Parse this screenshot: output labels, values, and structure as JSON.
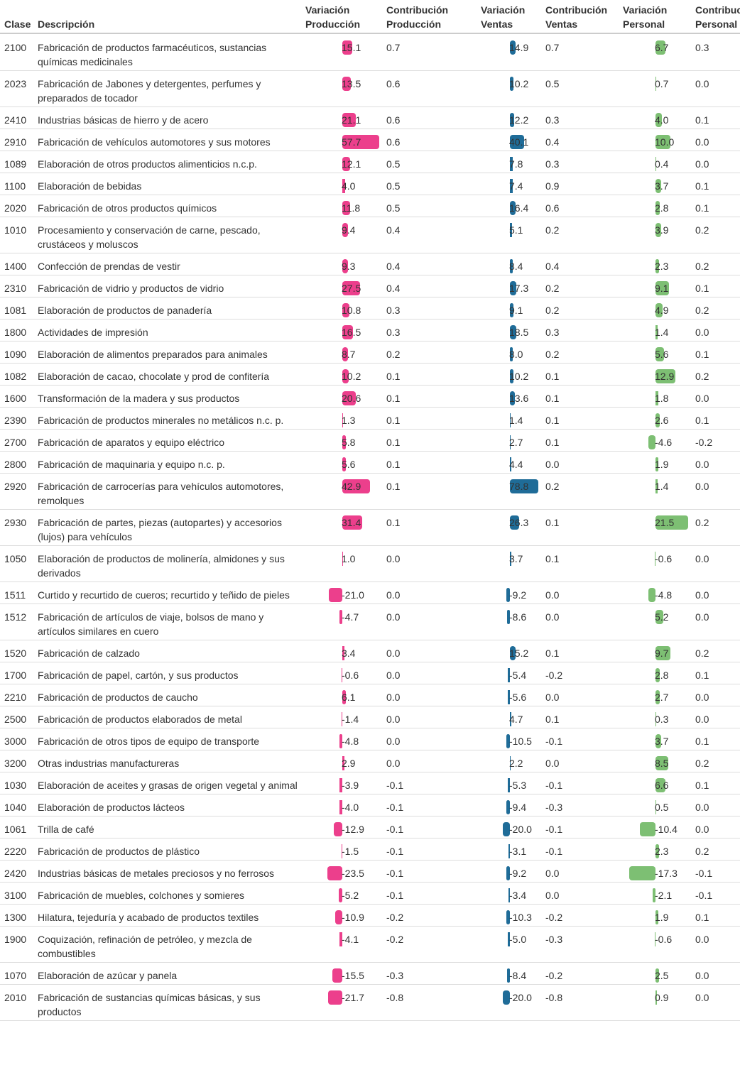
{
  "chart_data": {
    "type": "table",
    "colors": {
      "produccion": "#ec3f8c",
      "ventas": "#1f6c98",
      "personal": "#7dbf73"
    },
    "headers": {
      "clase": "Clase",
      "descripcion": "Descripción",
      "var_prod": [
        "Variación",
        "Producción"
      ],
      "contrib_prod": [
        "Contribución",
        "Producción"
      ],
      "var_ventas": [
        "Variación",
        "Ventas"
      ],
      "contrib_ventas": [
        "Contribución",
        "Ventas"
      ],
      "var_personal": [
        "Variación",
        "Personal"
      ],
      "contrib_personal": [
        "Contribución",
        "Personal"
      ]
    },
    "rows": [
      {
        "clase": "2100",
        "descripcion": "Fabricación de productos farmacéuticos, sustancias químicas medicinales",
        "var_prod": 15.1,
        "contrib_prod": "0.7",
        "var_ventas": 14.9,
        "contrib_ventas": "0.7",
        "var_personal": 6.7,
        "contrib_personal": "0.3"
      },
      {
        "clase": "2023",
        "descripcion": "Fabricación de Jabones y detergentes, perfumes y preparados de tocador",
        "var_prod": 13.5,
        "contrib_prod": "0.6",
        "var_ventas": 10.2,
        "contrib_ventas": "0.5",
        "var_personal": 0.7,
        "contrib_personal": "0.0"
      },
      {
        "clase": "2410",
        "descripcion": "Industrias básicas de hierro y de acero",
        "var_prod": 21.1,
        "contrib_prod": "0.6",
        "var_ventas": 12.2,
        "contrib_ventas": "0.3",
        "var_personal": 4.0,
        "contrib_personal": "0.1"
      },
      {
        "clase": "2910",
        "descripcion": "Fabricación de vehículos automotores y sus motores",
        "var_prod": 57.7,
        "contrib_prod": "0.6",
        "var_ventas": 40.1,
        "contrib_ventas": "0.4",
        "var_personal": 10.0,
        "contrib_personal": "0.0"
      },
      {
        "clase": "1089",
        "descripcion": "Elaboración de otros productos alimenticios n.c.p.",
        "var_prod": 12.1,
        "contrib_prod": "0.5",
        "var_ventas": 7.8,
        "contrib_ventas": "0.3",
        "var_personal": 0.4,
        "contrib_personal": "0.0"
      },
      {
        "clase": "1100",
        "descripcion": "Elaboración de bebidas",
        "var_prod": 4.0,
        "contrib_prod": "0.5",
        "var_ventas": 7.4,
        "contrib_ventas": "0.9",
        "var_personal": 3.7,
        "contrib_personal": "0.1"
      },
      {
        "clase": "2020",
        "descripcion": "Fabricación de otros productos químicos",
        "var_prod": 11.8,
        "contrib_prod": "0.5",
        "var_ventas": 16.4,
        "contrib_ventas": "0.6",
        "var_personal": 2.8,
        "contrib_personal": "0.1"
      },
      {
        "clase": "1010",
        "descripcion": "Procesamiento y conservación de carne, pescado, crustáceos y moluscos",
        "var_prod": 9.4,
        "contrib_prod": "0.4",
        "var_ventas": 5.1,
        "contrib_ventas": "0.2",
        "var_personal": 3.9,
        "contrib_personal": "0.2"
      },
      {
        "clase": "1400",
        "descripcion": "Confección de prendas de vestir",
        "var_prod": 9.3,
        "contrib_prod": "0.4",
        "var_ventas": 8.4,
        "contrib_ventas": "0.4",
        "var_personal": 2.3,
        "contrib_personal": "0.2"
      },
      {
        "clase": "2310",
        "descripcion": "Fabricación de vidrio y productos de vidrio",
        "var_prod": 27.5,
        "contrib_prod": "0.4",
        "var_ventas": 17.3,
        "contrib_ventas": "0.2",
        "var_personal": 9.1,
        "contrib_personal": "0.1"
      },
      {
        "clase": "1081",
        "descripcion": "Elaboración de productos de panadería",
        "var_prod": 10.8,
        "contrib_prod": "0.3",
        "var_ventas": 9.1,
        "contrib_ventas": "0.2",
        "var_personal": 4.9,
        "contrib_personal": "0.2"
      },
      {
        "clase": "1800",
        "descripcion": "Actividades de impresión",
        "var_prod": 16.5,
        "contrib_prod": "0.3",
        "var_ventas": 18.5,
        "contrib_ventas": "0.3",
        "var_personal": 1.4,
        "contrib_personal": "0.0"
      },
      {
        "clase": "1090",
        "descripcion": "Elaboración de alimentos preparados para animales",
        "var_prod": 8.7,
        "contrib_prod": "0.2",
        "var_ventas": 8.0,
        "contrib_ventas": "0.2",
        "var_personal": 5.6,
        "contrib_personal": "0.1"
      },
      {
        "clase": "1082",
        "descripcion": "Elaboración de cacao, chocolate y prod de confitería",
        "var_prod": 10.2,
        "contrib_prod": "0.1",
        "var_ventas": 10.2,
        "contrib_ventas": "0.1",
        "var_personal": 12.9,
        "contrib_personal": "0.2"
      },
      {
        "clase": "1600",
        "descripcion": "Transformación de la madera y sus productos",
        "var_prod": 20.6,
        "contrib_prod": "0.1",
        "var_ventas": 13.6,
        "contrib_ventas": "0.1",
        "var_personal": 1.8,
        "contrib_personal": "0.0"
      },
      {
        "clase": "2390",
        "descripcion": "Fabricación de productos minerales no metálicos n.c. p.",
        "var_prod": 1.3,
        "contrib_prod": "0.1",
        "var_ventas": 1.4,
        "contrib_ventas": "0.1",
        "var_personal": 2.6,
        "contrib_personal": "0.1"
      },
      {
        "clase": "2700",
        "descripcion": "Fabricación de aparatos y equipo eléctrico",
        "var_prod": 5.8,
        "contrib_prod": "0.1",
        "var_ventas": 2.7,
        "contrib_ventas": "0.1",
        "var_personal": -4.6,
        "contrib_personal": "-0.2"
      },
      {
        "clase": "2800",
        "descripcion": "Fabricación de maquinaria y equipo n.c. p.",
        "var_prod": 5.6,
        "contrib_prod": "0.1",
        "var_ventas": 4.4,
        "contrib_ventas": "0.0",
        "var_personal": 1.9,
        "contrib_personal": "0.0"
      },
      {
        "clase": "2920",
        "descripcion": "Fabricación de carrocerías para vehículos automotores, remolques",
        "var_prod": 42.9,
        "contrib_prod": "0.1",
        "var_ventas": 78.8,
        "contrib_ventas": "0.2",
        "var_personal": 1.4,
        "contrib_personal": "0.0"
      },
      {
        "clase": "2930",
        "descripcion": "Fabricación de partes, piezas (autopartes) y accesorios (lujos) para vehículos",
        "var_prod": 31.4,
        "contrib_prod": "0.1",
        "var_ventas": 26.3,
        "contrib_ventas": "0.1",
        "var_personal": 21.5,
        "contrib_personal": "0.2"
      },
      {
        "clase": "1050",
        "descripcion": "Elaboración de productos de molinería, almidones y sus derivados",
        "var_prod": 1.0,
        "contrib_prod": "0.0",
        "var_ventas": 3.7,
        "contrib_ventas": "0.1",
        "var_personal": -0.6,
        "contrib_personal": "0.0"
      },
      {
        "clase": "1511",
        "descripcion": "Curtido y recurtido de cueros; recurtido y teñido de pieles",
        "var_prod": -21.0,
        "contrib_prod": "0.0",
        "var_ventas": -9.2,
        "contrib_ventas": "0.0",
        "var_personal": -4.8,
        "contrib_personal": "0.0"
      },
      {
        "clase": "1512",
        "descripcion": "Fabricación de artículos de viaje, bolsos de mano y artículos similares en cuero",
        "var_prod": -4.7,
        "contrib_prod": "0.0",
        "var_ventas": -8.6,
        "contrib_ventas": "0.0",
        "var_personal": 5.2,
        "contrib_personal": "0.0"
      },
      {
        "clase": "1520",
        "descripcion": "Fabricación de calzado",
        "var_prod": 3.4,
        "contrib_prod": "0.0",
        "var_ventas": 15.2,
        "contrib_ventas": "0.1",
        "var_personal": 9.7,
        "contrib_personal": "0.2"
      },
      {
        "clase": "1700",
        "descripcion": "Fabricación de papel, cartón, y sus productos",
        "var_prod": -0.6,
        "contrib_prod": "0.0",
        "var_ventas": -5.4,
        "contrib_ventas": "-0.2",
        "var_personal": 2.8,
        "contrib_personal": "0.1"
      },
      {
        "clase": "2210",
        "descripcion": "Fabricación de productos de caucho",
        "var_prod": 6.1,
        "contrib_prod": "0.0",
        "var_ventas": -5.6,
        "contrib_ventas": "0.0",
        "var_personal": 2.7,
        "contrib_personal": "0.0"
      },
      {
        "clase": "2500",
        "descripcion": "Fabricación de productos elaborados de metal",
        "var_prod": -1.4,
        "contrib_prod": "0.0",
        "var_ventas": 4.7,
        "contrib_ventas": "0.1",
        "var_personal": 0.3,
        "contrib_personal": "0.0"
      },
      {
        "clase": "3000",
        "descripcion": "Fabricación de otros tipos de equipo de transporte",
        "var_prod": -4.8,
        "contrib_prod": "0.0",
        "var_ventas": -10.5,
        "contrib_ventas": "-0.1",
        "var_personal": 3.7,
        "contrib_personal": "0.1"
      },
      {
        "clase": "3200",
        "descripcion": "Otras industrias manufactureras",
        "var_prod": 2.9,
        "contrib_prod": "0.0",
        "var_ventas": 2.2,
        "contrib_ventas": "0.0",
        "var_personal": 8.5,
        "contrib_personal": "0.2"
      },
      {
        "clase": "1030",
        "descripcion": "Elaboración de aceites y grasas de origen vegetal y animal",
        "var_prod": -3.9,
        "contrib_prod": "-0.1",
        "var_ventas": -5.3,
        "contrib_ventas": "-0.1",
        "var_personal": 6.6,
        "contrib_personal": "0.1"
      },
      {
        "clase": "1040",
        "descripcion": "Elaboración de productos lácteos",
        "var_prod": -4.0,
        "contrib_prod": "-0.1",
        "var_ventas": -9.4,
        "contrib_ventas": "-0.3",
        "var_personal": 0.5,
        "contrib_personal": "0.0"
      },
      {
        "clase": "1061",
        "descripcion": "Trilla de café",
        "var_prod": -12.9,
        "contrib_prod": "-0.1",
        "var_ventas": -20.0,
        "contrib_ventas": "-0.1",
        "var_personal": -10.4,
        "contrib_personal": "0.0"
      },
      {
        "clase": "2220",
        "descripcion": "Fabricación de productos de plástico",
        "var_prod": -1.5,
        "contrib_prod": "-0.1",
        "var_ventas": -3.1,
        "contrib_ventas": "-0.1",
        "var_personal": 2.3,
        "contrib_personal": "0.2"
      },
      {
        "clase": "2420",
        "descripcion": "Industrias básicas de metales preciosos y no ferrosos",
        "var_prod": -23.5,
        "contrib_prod": "-0.1",
        "var_ventas": -9.2,
        "contrib_ventas": "0.0",
        "var_personal": -17.3,
        "contrib_personal": "-0.1"
      },
      {
        "clase": "3100",
        "descripcion": "Fabricación de muebles, colchones y somieres",
        "var_prod": -5.2,
        "contrib_prod": "-0.1",
        "var_ventas": -3.4,
        "contrib_ventas": "0.0",
        "var_personal": -2.1,
        "contrib_personal": "-0.1"
      },
      {
        "clase": "1300",
        "descripcion": "Hilatura, tejeduría y acabado de productos textiles",
        "var_prod": -10.9,
        "contrib_prod": "-0.2",
        "var_ventas": -10.3,
        "contrib_ventas": "-0.2",
        "var_personal": 1.9,
        "contrib_personal": "0.1"
      },
      {
        "clase": "1900",
        "descripcion": "Coquización, refinación de petróleo, y mezcla de combustibles",
        "var_prod": -4.1,
        "contrib_prod": "-0.2",
        "var_ventas": -5.0,
        "contrib_ventas": "-0.3",
        "var_personal": -0.6,
        "contrib_personal": "0.0"
      },
      {
        "clase": "1070",
        "descripcion": "Elaboración de azúcar y panela",
        "var_prod": -15.5,
        "contrib_prod": "-0.3",
        "var_ventas": -8.4,
        "contrib_ventas": "-0.2",
        "var_personal": 2.5,
        "contrib_personal": "0.0"
      },
      {
        "clase": "2010",
        "descripcion": "Fabricación de sustancias químicas básicas, y sus productos",
        "var_prod": -21.7,
        "contrib_prod": "-0.8",
        "var_ventas": -20.0,
        "contrib_ventas": "-0.8",
        "var_personal": 0.9,
        "contrib_personal": "0.0"
      }
    ]
  }
}
